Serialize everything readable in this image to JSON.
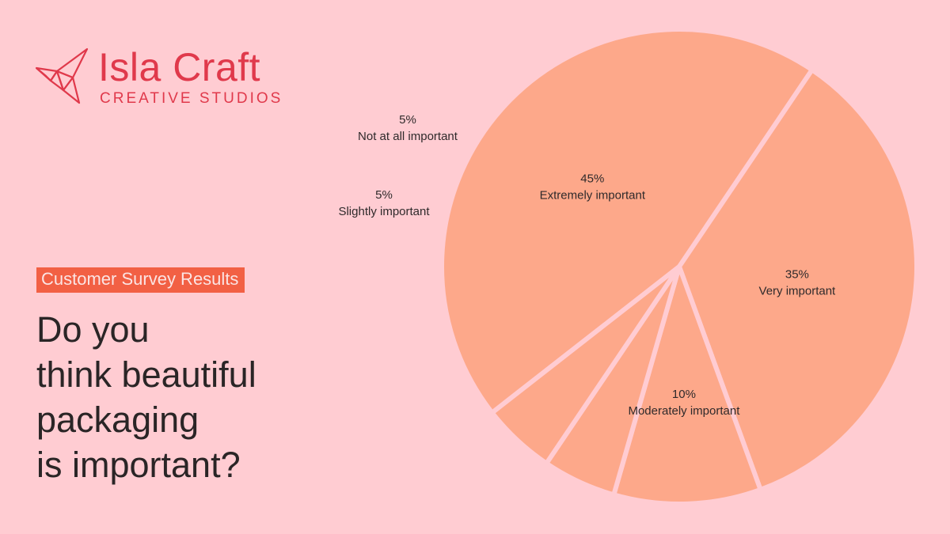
{
  "brand": {
    "name": "Isla Craft",
    "tagline": "CREATIVE STUDIOS"
  },
  "badge": "Customer Survey Results",
  "question": [
    "Do you",
    "think beautiful",
    "packaging",
    "is important?"
  ],
  "colors": {
    "background": "#ffccd2",
    "slice": "#fda88a",
    "separator": "#ffccd2",
    "accent": "#f26044",
    "brand": "#e0394b"
  },
  "chart_data": {
    "type": "pie",
    "slices": [
      {
        "label": "Extremely important",
        "value": 45,
        "display": "45%"
      },
      {
        "label": "Very important",
        "value": 35,
        "display": "35%"
      },
      {
        "label": "Moderately important",
        "value": 10,
        "display": "10%"
      },
      {
        "label": "Slightly important",
        "value": 5,
        "display": "5%"
      },
      {
        "label": "Not at all important",
        "value": 5,
        "display": "5%"
      }
    ]
  }
}
